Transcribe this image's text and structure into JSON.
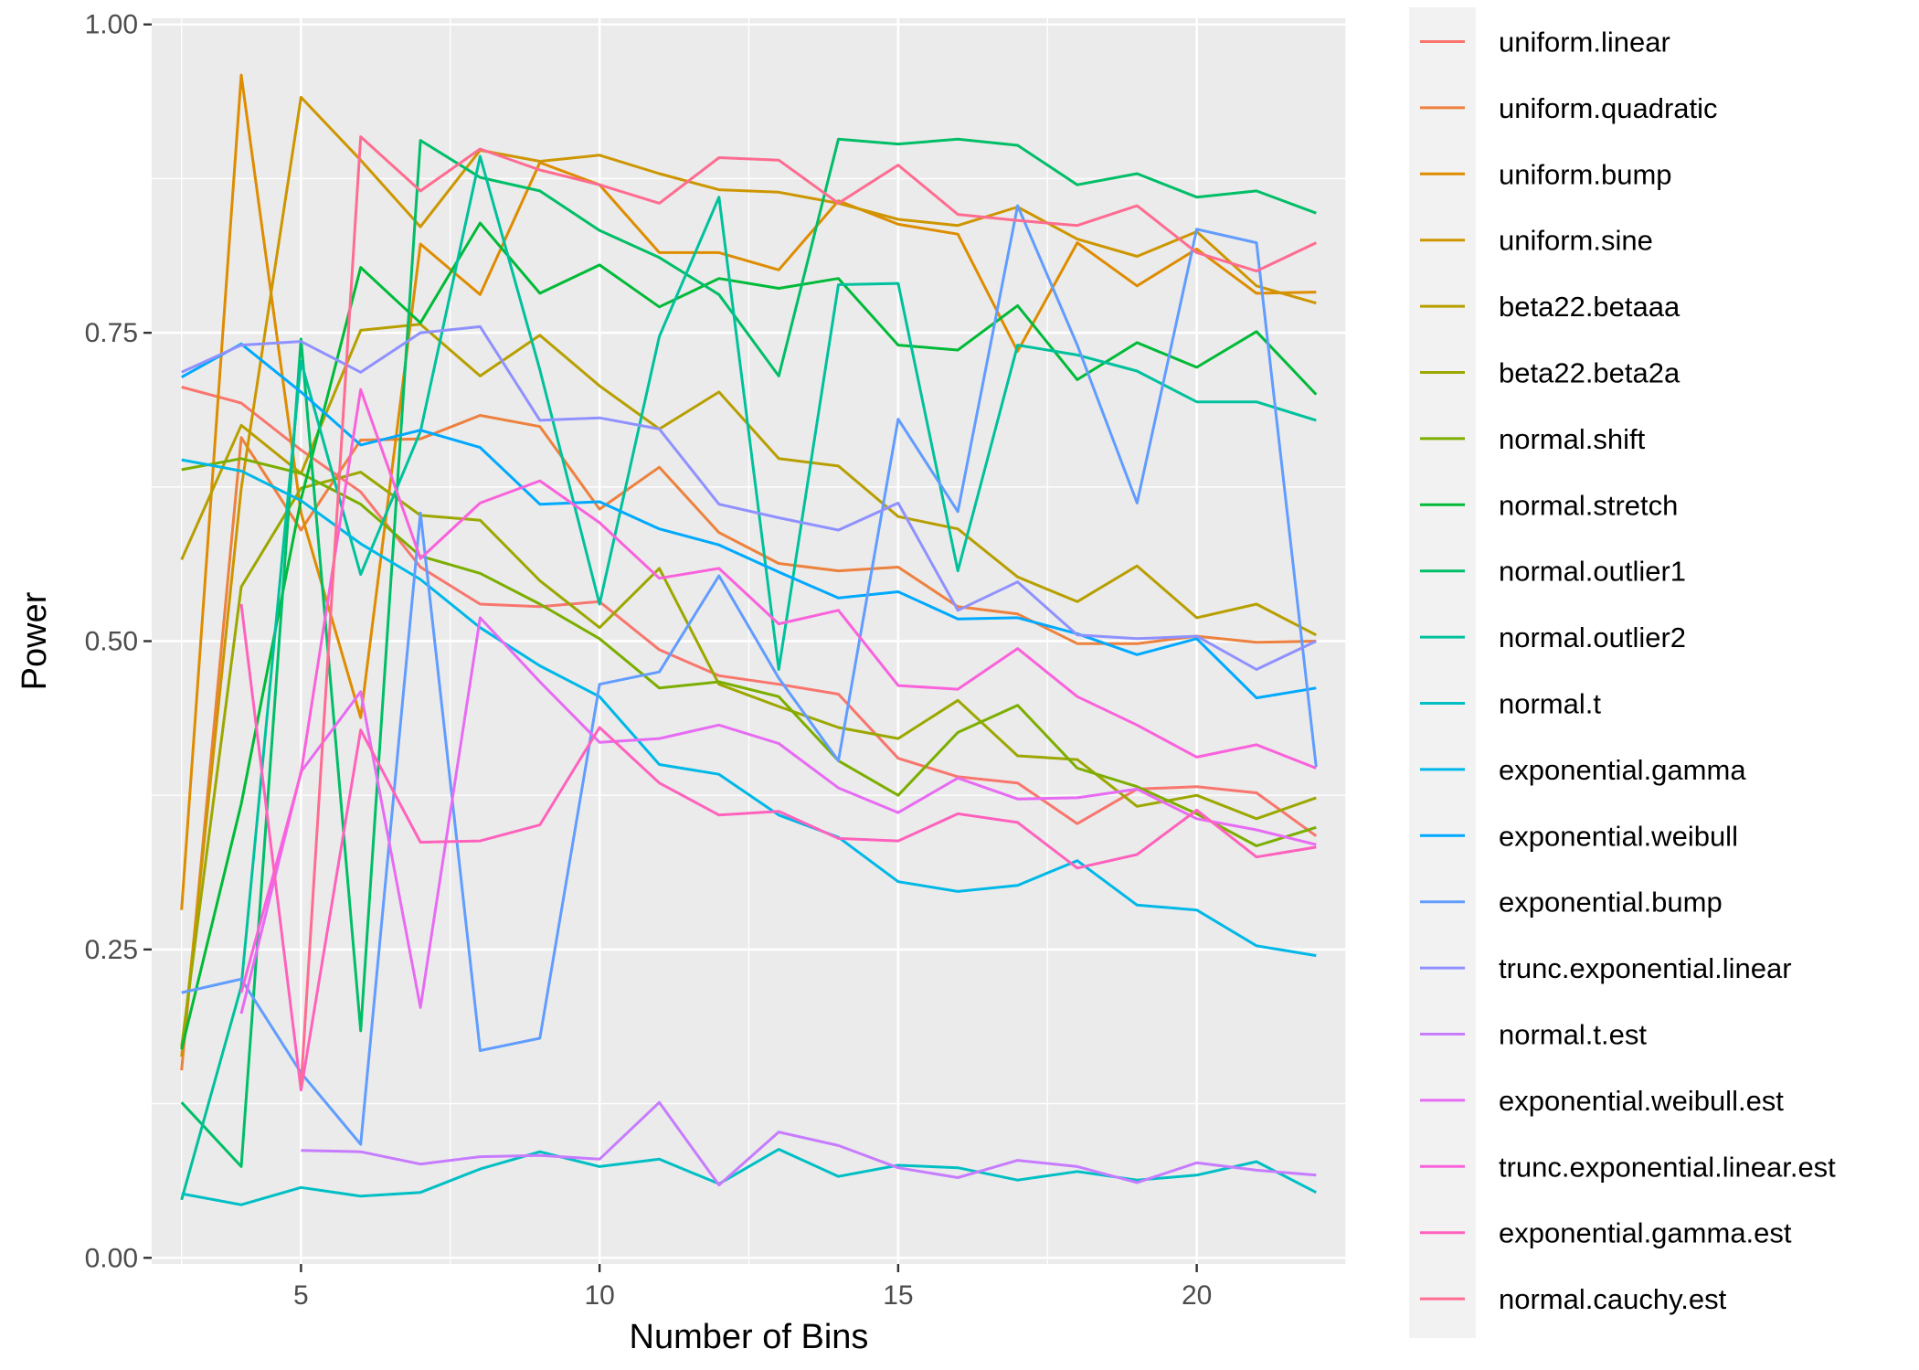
{
  "chart_data": {
    "type": "line",
    "title": "",
    "xlabel": "Number of Bins",
    "ylabel": "Power",
    "xlim": [
      2.5,
      22.5
    ],
    "ylim": [
      -0.005,
      1.005
    ],
    "x_ticks": [
      5,
      10,
      15,
      20
    ],
    "x_tick_labels": [
      "5",
      "10",
      "15",
      "20"
    ],
    "y_ticks": [
      0,
      0.25,
      0.5,
      0.75,
      1
    ],
    "y_tick_labels": [
      "0.00",
      "0.25",
      "0.50",
      "0.75",
      "1.00"
    ],
    "grid": true,
    "legend_position": "right",
    "x": [
      3,
      4,
      5,
      6,
      7,
      8,
      9,
      10,
      11,
      12,
      13,
      14,
      15,
      16,
      17,
      18,
      19,
      20,
      21,
      22
    ],
    "series": [
      {
        "name": "uniform.linear",
        "color": "#F8766D",
        "values": [
          0.706,
          0.693,
          0.655,
          0.621,
          0.56,
          0.53,
          0.528,
          0.532,
          0.493,
          0.472,
          0.465,
          0.457,
          0.405,
          0.39,
          0.385,
          0.352,
          0.38,
          0.382,
          0.377,
          0.342
        ]
      },
      {
        "name": "uniform.quadratic",
        "color": "#ED813E",
        "values": [
          0.152,
          0.665,
          0.59,
          0.663,
          0.664,
          0.683,
          0.674,
          0.607,
          0.641,
          0.588,
          0.563,
          0.557,
          0.56,
          0.528,
          0.522,
          0.498,
          0.498,
          0.504,
          0.499,
          0.5
        ]
      },
      {
        "name": "uniform.bump",
        "color": "#DE8C00",
        "values": [
          0.282,
          0.959,
          0.604,
          0.438,
          0.822,
          0.781,
          0.888,
          0.87,
          0.815,
          0.815,
          0.801,
          0.857,
          0.838,
          0.83,
          0.735,
          0.823,
          0.788,
          0.818,
          0.782,
          0.783
        ]
      },
      {
        "name": "uniform.sine",
        "color": "#CD9600",
        "values": [
          0.163,
          0.624,
          0.941,
          0.89,
          0.836,
          0.898,
          0.889,
          0.894,
          0.879,
          0.866,
          0.864,
          0.855,
          0.842,
          0.837,
          0.852,
          0.826,
          0.812,
          0.832,
          0.788,
          0.774
        ]
      },
      {
        "name": "beta22.betaaa",
        "color": "#B79F00",
        "values": [
          0.566,
          0.675,
          0.636,
          0.752,
          0.757,
          0.715,
          0.748,
          0.707,
          0.672,
          0.702,
          0.648,
          0.642,
          0.601,
          0.591,
          0.552,
          0.532,
          0.561,
          0.519,
          0.53,
          0.505
        ]
      },
      {
        "name": "beta22.beta2a",
        "color": "#9CA700",
        "values": [
          0.171,
          0.544,
          0.624,
          0.637,
          0.602,
          0.598,
          0.549,
          0.511,
          0.559,
          0.465,
          0.447,
          0.43,
          0.421,
          0.452,
          0.407,
          0.404,
          0.366,
          0.375,
          0.356,
          0.373
        ]
      },
      {
        "name": "normal.shift",
        "color": "#7CAE00",
        "values": [
          0.639,
          0.648,
          0.636,
          0.611,
          0.569,
          0.555,
          0.53,
          0.502,
          0.462,
          0.467,
          0.455,
          0.403,
          0.375,
          0.426,
          0.448,
          0.397,
          0.382,
          0.36,
          0.334,
          0.349
        ]
      },
      {
        "name": "normal.stretch",
        "color": "#00BA38",
        "values": [
          0.169,
          0.368,
          0.615,
          0.803,
          0.758,
          0.839,
          0.782,
          0.805,
          0.771,
          0.794,
          0.786,
          0.794,
          0.74,
          0.736,
          0.772,
          0.712,
          0.742,
          0.722,
          0.751,
          0.7
        ]
      },
      {
        "name": "normal.outlier1",
        "color": "#00BE67",
        "values": [
          0.126,
          0.074,
          0.745,
          0.184,
          0.906,
          0.876,
          0.865,
          0.833,
          0.811,
          0.781,
          0.715,
          0.907,
          0.903,
          0.907,
          0.902,
          0.87,
          0.879,
          0.86,
          0.865,
          0.847
        ]
      },
      {
        "name": "normal.outlier2",
        "color": "#00C19C",
        "values": [
          0.047,
          0.22,
          0.727,
          0.554,
          0.67,
          0.893,
          0.72,
          0.53,
          0.747,
          0.86,
          0.477,
          0.789,
          0.79,
          0.557,
          0.74,
          0.732,
          0.719,
          0.694,
          0.694,
          0.679
        ]
      },
      {
        "name": "normal.t",
        "color": "#00BFC4",
        "values": [
          0.052,
          0.043,
          0.057,
          0.05,
          0.053,
          0.072,
          0.086,
          0.074,
          0.08,
          0.06,
          0.088,
          0.066,
          0.075,
          0.073,
          0.063,
          0.07,
          0.063,
          0.067,
          0.078,
          0.053
        ]
      },
      {
        "name": "exponential.gamma",
        "color": "#00B8E7",
        "values": [
          0.647,
          0.638,
          0.614,
          0.579,
          0.55,
          0.511,
          0.48,
          0.455,
          0.4,
          0.392,
          0.359,
          0.341,
          0.305,
          0.297,
          0.302,
          0.322,
          0.286,
          0.282,
          0.253,
          0.245
        ]
      },
      {
        "name": "exponential.weibull",
        "color": "#00A9FF",
        "values": [
          0.714,
          0.741,
          0.702,
          0.659,
          0.671,
          0.657,
          0.611,
          0.613,
          0.591,
          0.578,
          0.556,
          0.535,
          0.54,
          0.518,
          0.519,
          0.506,
          0.489,
          0.502,
          0.454,
          0.462
        ]
      },
      {
        "name": "exponential.bump",
        "color": "#619CFF",
        "values": [
          0.215,
          0.226,
          0.15,
          0.092,
          0.604,
          0.168,
          0.178,
          0.465,
          0.475,
          0.553,
          0.47,
          0.403,
          0.68,
          0.605,
          0.853,
          0.74,
          0.612,
          0.834,
          0.823,
          0.398
        ]
      },
      {
        "name": "trunc.exponential.linear",
        "color": "#8F91FF",
        "values": [
          0.718,
          0.74,
          0.743,
          0.718,
          0.75,
          0.755,
          0.679,
          0.681,
          0.672,
          0.611,
          0.6,
          0.59,
          0.612,
          0.525,
          0.548,
          0.505,
          0.502,
          0.504,
          0.477,
          0.5
        ]
      },
      {
        "name": "normal.t.est",
        "color": "#C77CFF",
        "values": [
          null,
          null,
          0.087,
          0.086,
          0.076,
          0.082,
          0.083,
          0.08,
          0.126,
          0.059,
          0.102,
          0.091,
          0.073,
          0.065,
          0.079,
          0.074,
          0.061,
          0.077,
          0.071,
          0.067
        ]
      },
      {
        "name": "exponential.weibull.est",
        "color": "#E76BF3",
        "values": [
          null,
          0.198,
          0.394,
          0.459,
          0.203,
          0.519,
          0.467,
          0.418,
          0.421,
          0.432,
          0.417,
          0.381,
          0.361,
          0.389,
          0.372,
          0.373,
          0.38,
          0.356,
          0.347,
          0.335
        ]
      },
      {
        "name": "trunc.exponential.linear.est",
        "color": "#FA62DB",
        "values": [
          null,
          0.215,
          0.393,
          0.704,
          0.567,
          0.612,
          0.63,
          0.596,
          0.551,
          0.559,
          0.514,
          0.525,
          0.464,
          0.461,
          0.494,
          0.455,
          0.432,
          0.406,
          0.416,
          0.397
        ]
      },
      {
        "name": "exponential.gamma.est",
        "color": "#FF62BC",
        "values": [
          null,
          0.53,
          0.136,
          0.428,
          0.337,
          0.338,
          0.351,
          0.43,
          0.385,
          0.359,
          0.362,
          0.34,
          0.338,
          0.36,
          0.353,
          0.316,
          0.327,
          0.363,
          0.325,
          0.333
        ]
      },
      {
        "name": "normal.cauchy.est",
        "color": "#FF6C91",
        "values": [
          null,
          null,
          0.139,
          0.909,
          0.865,
          0.899,
          0.882,
          0.87,
          0.855,
          0.892,
          0.89,
          0.855,
          0.886,
          0.846,
          0.841,
          0.837,
          0.853,
          0.815,
          0.8,
          0.823
        ]
      }
    ]
  }
}
